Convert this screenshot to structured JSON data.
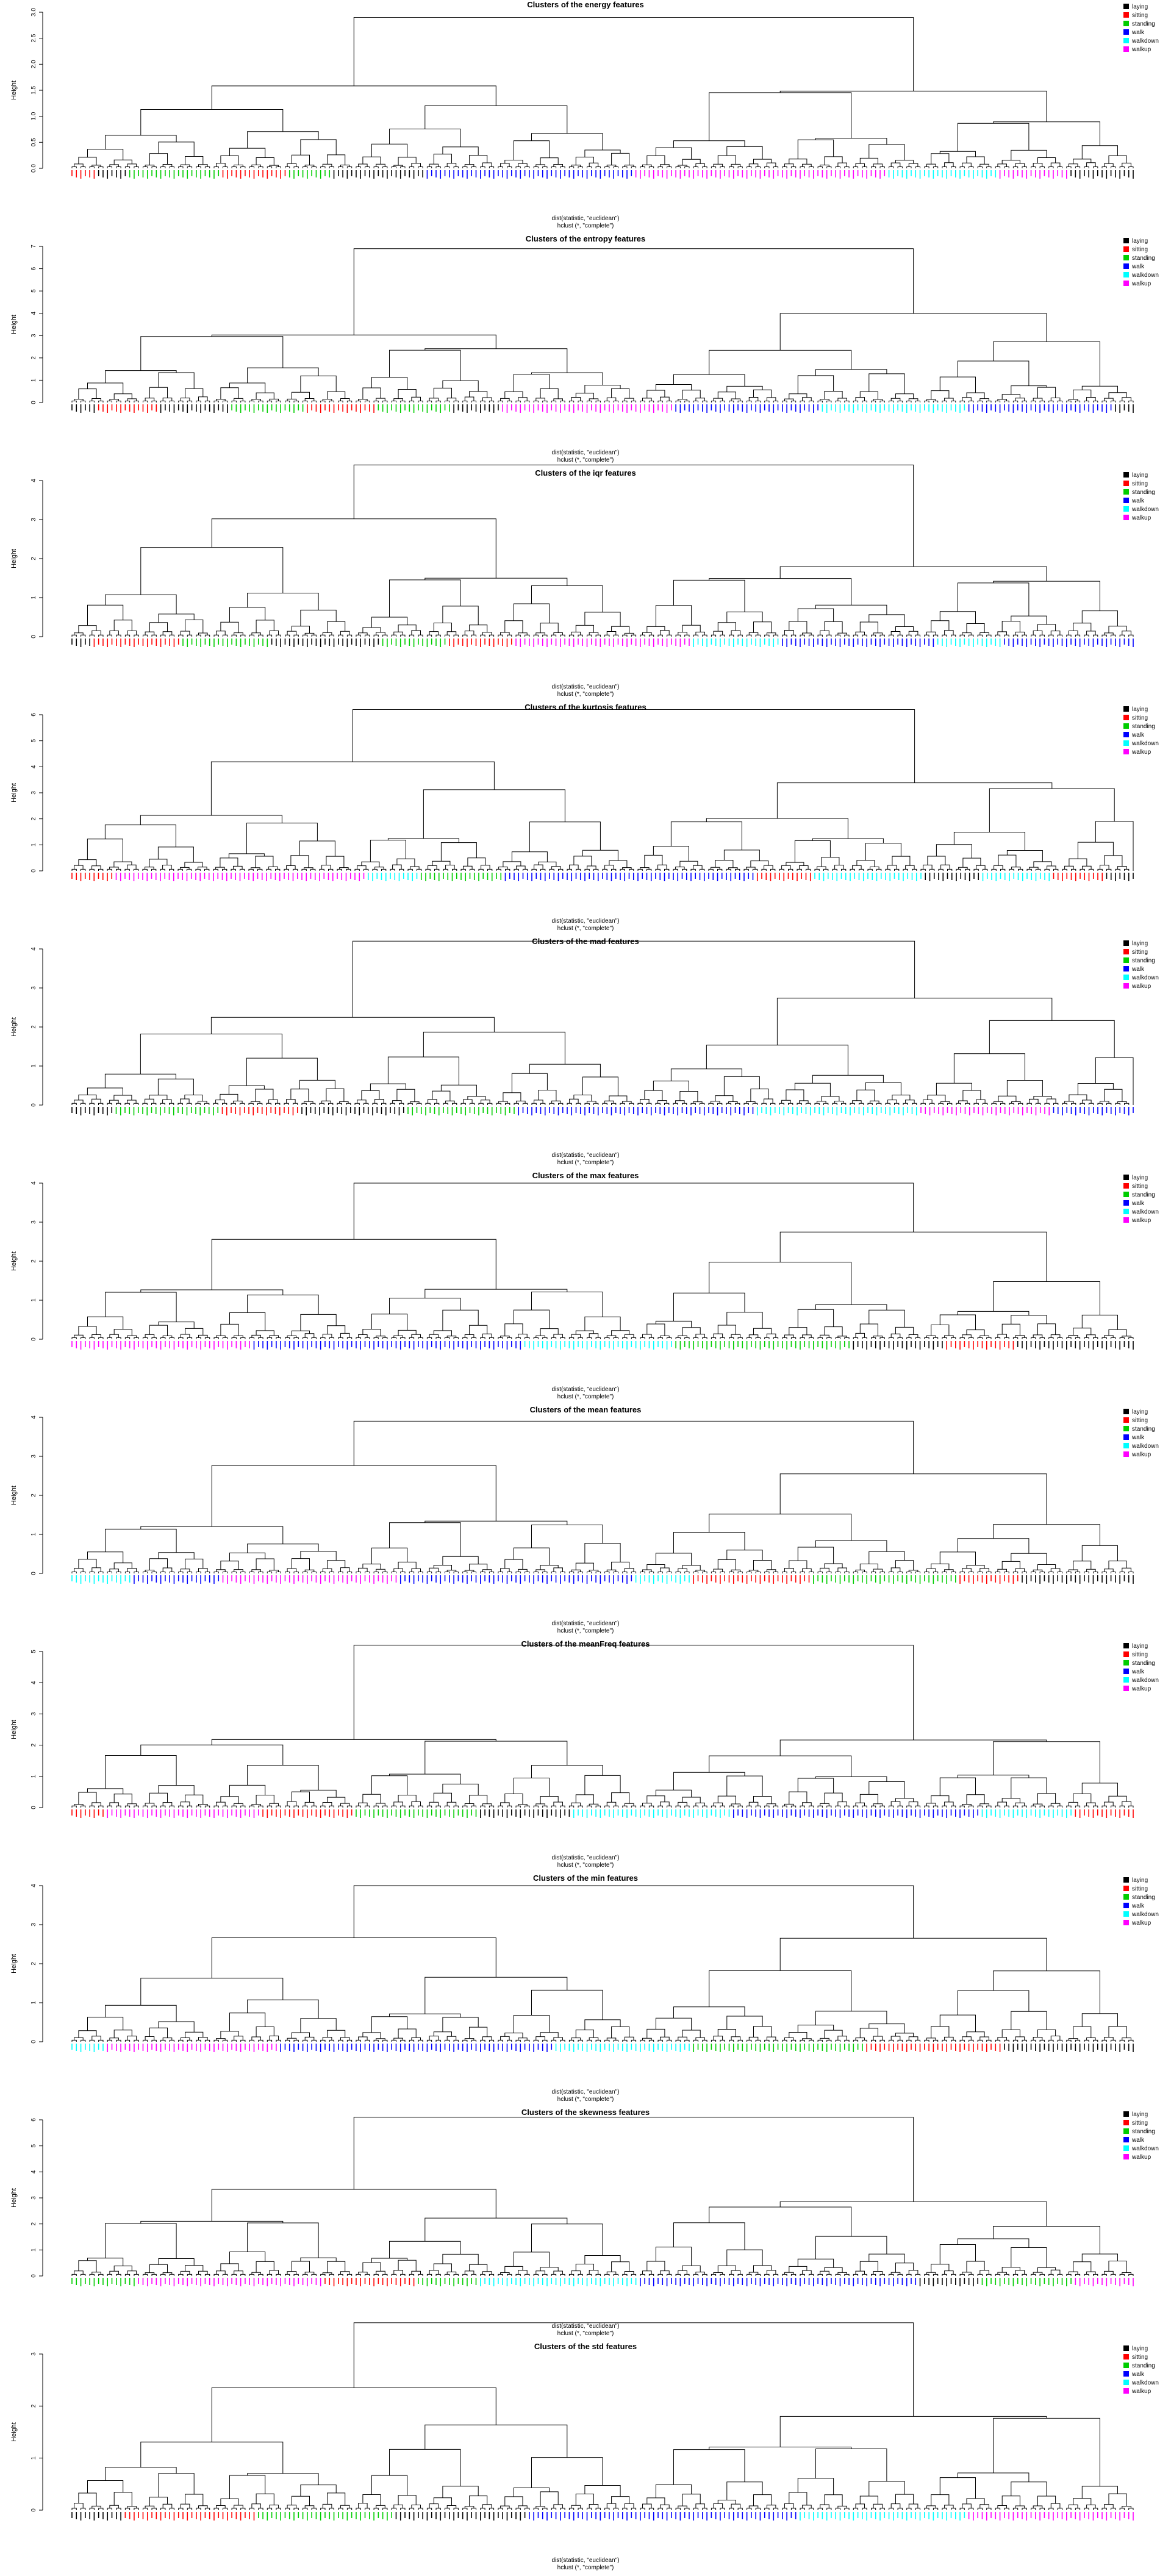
{
  "colors": {
    "laying": "#000000",
    "sitting": "#ff0000",
    "standing": "#00cd00",
    "walk": "#0000ff",
    "walkdown": "#00ffff",
    "walkup": "#ff00ff",
    "branch": "#000000"
  },
  "footer": {
    "line1": "dist(statistic, \"euclidean\")",
    "line2": "hclust (*, \"complete\")"
  },
  "chart_data": [
    {
      "type": "dendrogram",
      "title": "Clusters of the energy features",
      "ylabel": "Height",
      "ylim": [
        0,
        3.0
      ],
      "yticks": [
        "0.0",
        "0.5",
        "1.0",
        "1.5",
        "2.0",
        "2.5",
        "3.0"
      ],
      "root_height": 2.9,
      "legend": {
        "position": "top-right",
        "entries": [
          "laying",
          "sitting",
          "standing",
          "walk",
          "walkdown",
          "walkup"
        ]
      },
      "leaf_groups": [
        {
          "class": "sitting",
          "count": 10
        },
        {
          "class": "laying",
          "count": 14
        },
        {
          "class": "standing",
          "count": 40
        },
        {
          "class": "sitting",
          "count": 30
        },
        {
          "class": "standing",
          "count": 20
        },
        {
          "class": "laying",
          "count": 40
        },
        {
          "class": "walk",
          "count": 90
        },
        {
          "class": "walkup",
          "count": 70
        },
        {
          "class": "walkup",
          "count": 40
        },
        {
          "class": "walkdown",
          "count": 50
        },
        {
          "class": "walkup",
          "count": 30
        },
        {
          "class": "laying",
          "count": 30
        }
      ]
    },
    {
      "type": "dendrogram",
      "title": "Clusters of the entropy features",
      "ylabel": "Height",
      "ylim": [
        0,
        7
      ],
      "yticks": [
        "0",
        "1",
        "2",
        "3",
        "4",
        "5",
        "6",
        "7"
      ],
      "root_height": 6.9,
      "legend": {
        "position": "top-right",
        "entries": [
          "laying",
          "sitting",
          "standing",
          "walk",
          "walkdown",
          "walkup"
        ]
      },
      "leaf_groups": [
        {
          "class": "laying",
          "count": 10
        },
        {
          "class": "sitting",
          "count": 25
        },
        {
          "class": "laying",
          "count": 30
        },
        {
          "class": "standing",
          "count": 30
        },
        {
          "class": "sitting",
          "count": 30
        },
        {
          "class": "standing",
          "count": 30
        },
        {
          "class": "laying",
          "count": 20
        },
        {
          "class": "walkup",
          "count": 70
        },
        {
          "class": "walk",
          "count": 60
        },
        {
          "class": "walkdown",
          "count": 60
        },
        {
          "class": "walk",
          "count": 60
        },
        {
          "class": "laying",
          "count": 10
        }
      ]
    },
    {
      "type": "dendrogram",
      "title": "Clusters of the iqr features",
      "ylabel": "Height",
      "ylim": [
        0,
        4
      ],
      "yticks": [
        "0",
        "1",
        "2",
        "3",
        "4"
      ],
      "root_height": 4.4,
      "legend": {
        "position": "top-right",
        "entries": [
          "laying",
          "sitting",
          "standing",
          "walk",
          "walkdown",
          "walkup"
        ]
      },
      "leaf_groups": [
        {
          "class": "laying",
          "count": 10
        },
        {
          "class": "sitting",
          "count": 40
        },
        {
          "class": "standing",
          "count": 40
        },
        {
          "class": "laying",
          "count": 50
        },
        {
          "class": "standing",
          "count": 30
        },
        {
          "class": "sitting",
          "count": 30
        },
        {
          "class": "walkup",
          "count": 80
        },
        {
          "class": "walkdown",
          "count": 40
        },
        {
          "class": "walk",
          "count": 70
        },
        {
          "class": "walkdown",
          "count": 30
        },
        {
          "class": "walk",
          "count": 60
        }
      ]
    },
    {
      "type": "dendrogram",
      "title": "Clusters of the kurtosis features",
      "ylabel": "Height",
      "ylim": [
        0,
        6
      ],
      "yticks": [
        "0",
        "1",
        "2",
        "3",
        "4",
        "5",
        "6"
      ],
      "root_height": 6.2,
      "legend": {
        "position": "top-right",
        "entries": [
          "laying",
          "sitting",
          "standing",
          "walk",
          "walkdown",
          "walkup"
        ]
      },
      "leaf_groups": [
        {
          "class": "sitting",
          "count": 15
        },
        {
          "class": "walkup",
          "count": 90
        },
        {
          "class": "walkdown",
          "count": 20
        },
        {
          "class": "standing",
          "count": 30
        },
        {
          "class": "walk",
          "count": 90
        },
        {
          "class": "sitting",
          "count": 20
        },
        {
          "class": "walkdown",
          "count": 40
        },
        {
          "class": "laying",
          "count": 20
        },
        {
          "class": "walkdown",
          "count": 25
        },
        {
          "class": "sitting",
          "count": 20
        },
        {
          "class": "laying",
          "count": 10
        }
      ]
    },
    {
      "type": "dendrogram",
      "title": "Clusters of the mad features",
      "ylabel": "Height",
      "ylim": [
        0,
        4
      ],
      "yticks": [
        "0",
        "1",
        "2",
        "3",
        "4"
      ],
      "root_height": 4.2,
      "legend": {
        "position": "top-right",
        "entries": [
          "laying",
          "sitting",
          "standing",
          "walk",
          "walkdown",
          "walkup"
        ]
      },
      "leaf_groups": [
        {
          "class": "laying",
          "count": 15
        },
        {
          "class": "standing",
          "count": 40
        },
        {
          "class": "sitting",
          "count": 30
        },
        {
          "class": "laying",
          "count": 40
        },
        {
          "class": "standing",
          "count": 40
        },
        {
          "class": "walk",
          "count": 90
        },
        {
          "class": "walkdown",
          "count": 60
        },
        {
          "class": "walkup",
          "count": 50
        },
        {
          "class": "walk",
          "count": 30
        }
      ]
    },
    {
      "type": "dendrogram",
      "title": "Clusters of the max features",
      "ylabel": "Height",
      "ylim": [
        0,
        4
      ],
      "yticks": [
        "0",
        "1",
        "2",
        "3",
        "4"
      ],
      "root_height": 4.0,
      "legend": {
        "position": "top-right",
        "entries": [
          "laying",
          "sitting",
          "standing",
          "walk",
          "walkdown",
          "walkup"
        ]
      },
      "leaf_groups": [
        {
          "class": "walkup",
          "count": 60
        },
        {
          "class": "walk",
          "count": 90
        },
        {
          "class": "walkdown",
          "count": 50
        },
        {
          "class": "standing",
          "count": 60
        },
        {
          "class": "laying",
          "count": 30
        },
        {
          "class": "sitting",
          "count": 25
        },
        {
          "class": "laying",
          "count": 40
        }
      ]
    },
    {
      "type": "dendrogram",
      "title": "Clusters of the mean features",
      "ylabel": "Height",
      "ylim": [
        0,
        4
      ],
      "yticks": [
        "0",
        "1",
        "2",
        "3",
        "4"
      ],
      "root_height": 3.9,
      "legend": {
        "position": "top-right",
        "entries": [
          "laying",
          "sitting",
          "standing",
          "walk",
          "walkdown",
          "walkup"
        ]
      },
      "leaf_groups": [
        {
          "class": "walkdown",
          "count": 20
        },
        {
          "class": "walk",
          "count": 30
        },
        {
          "class": "walkup",
          "count": 60
        },
        {
          "class": "walk",
          "count": 80
        },
        {
          "class": "walkdown",
          "count": 20
        },
        {
          "class": "sitting",
          "count": 40
        },
        {
          "class": "standing",
          "count": 50
        },
        {
          "class": "sitting",
          "count": 20
        },
        {
          "class": "laying",
          "count": 40
        }
      ]
    },
    {
      "type": "dendrogram",
      "title": "Clusters of the meanFreq features",
      "ylabel": "Height",
      "ylim": [
        0,
        5
      ],
      "yticks": [
        "0",
        "1",
        "2",
        "3",
        "4",
        "5"
      ],
      "root_height": 5.2,
      "legend": {
        "position": "top-right",
        "entries": [
          "laying",
          "sitting",
          "standing",
          "walk",
          "walkdown",
          "walkup"
        ]
      },
      "leaf_groups": [
        {
          "class": "sitting",
          "count": 10
        },
        {
          "class": "walkup",
          "count": 50
        },
        {
          "class": "sitting",
          "count": 30
        },
        {
          "class": "standing",
          "count": 40
        },
        {
          "class": "laying",
          "count": 30
        },
        {
          "class": "walkdown",
          "count": 50
        },
        {
          "class": "walk",
          "count": 80
        },
        {
          "class": "walkdown",
          "count": 30
        },
        {
          "class": "sitting",
          "count": 20
        }
      ]
    },
    {
      "type": "dendrogram",
      "title": "Clusters of the min features",
      "ylabel": "Height",
      "ylim": [
        0,
        4
      ],
      "yticks": [
        "0",
        "1",
        "2",
        "3",
        "4"
      ],
      "root_height": 4.0,
      "legend": {
        "position": "top-right",
        "entries": [
          "laying",
          "sitting",
          "standing",
          "walk",
          "walkdown",
          "walkup"
        ]
      },
      "leaf_groups": [
        {
          "class": "walkdown",
          "count": 10
        },
        {
          "class": "walkup",
          "count": 50
        },
        {
          "class": "walk",
          "count": 80
        },
        {
          "class": "walkdown",
          "count": 40
        },
        {
          "class": "standing",
          "count": 50
        },
        {
          "class": "sitting",
          "count": 40
        },
        {
          "class": "laying",
          "count": 40
        }
      ]
    },
    {
      "type": "dendrogram",
      "title": "Clusters of the skewness features",
      "ylabel": "Height",
      "ylim": [
        0,
        6
      ],
      "yticks": [
        "0",
        "1",
        "2",
        "3",
        "4",
        "5",
        "6"
      ],
      "root_height": 6.1,
      "legend": {
        "position": "top-right",
        "entries": [
          "laying",
          "sitting",
          "standing",
          "walk",
          "walkdown",
          "walkup"
        ]
      },
      "leaf_groups": [
        {
          "class": "standing",
          "count": 20
        },
        {
          "class": "walkup",
          "count": 60
        },
        {
          "class": "sitting",
          "count": 30
        },
        {
          "class": "standing",
          "count": 20
        },
        {
          "class": "walkdown",
          "count": 50
        },
        {
          "class": "walk",
          "count": 90
        },
        {
          "class": "laying",
          "count": 20
        },
        {
          "class": "standing",
          "count": 30
        },
        {
          "class": "walkup",
          "count": 20
        }
      ]
    },
    {
      "type": "dendrogram",
      "title": "Clusters of the std features",
      "ylabel": "Height",
      "ylim": [
        0,
        3
      ],
      "yticks": [
        "0",
        "1",
        "2",
        "3"
      ],
      "root_height": 3.6,
      "legend": {
        "position": "top-right",
        "entries": [
          "laying",
          "sitting",
          "standing",
          "walk",
          "walkdown",
          "walkup"
        ]
      },
      "leaf_groups": [
        {
          "class": "laying",
          "count": 15
        },
        {
          "class": "sitting",
          "count": 40
        },
        {
          "class": "standing",
          "count": 40
        },
        {
          "class": "laying",
          "count": 40
        },
        {
          "class": "walk",
          "count": 80
        },
        {
          "class": "walkdown",
          "count": 50
        },
        {
          "class": "walkup",
          "count": 50
        }
      ]
    }
  ]
}
